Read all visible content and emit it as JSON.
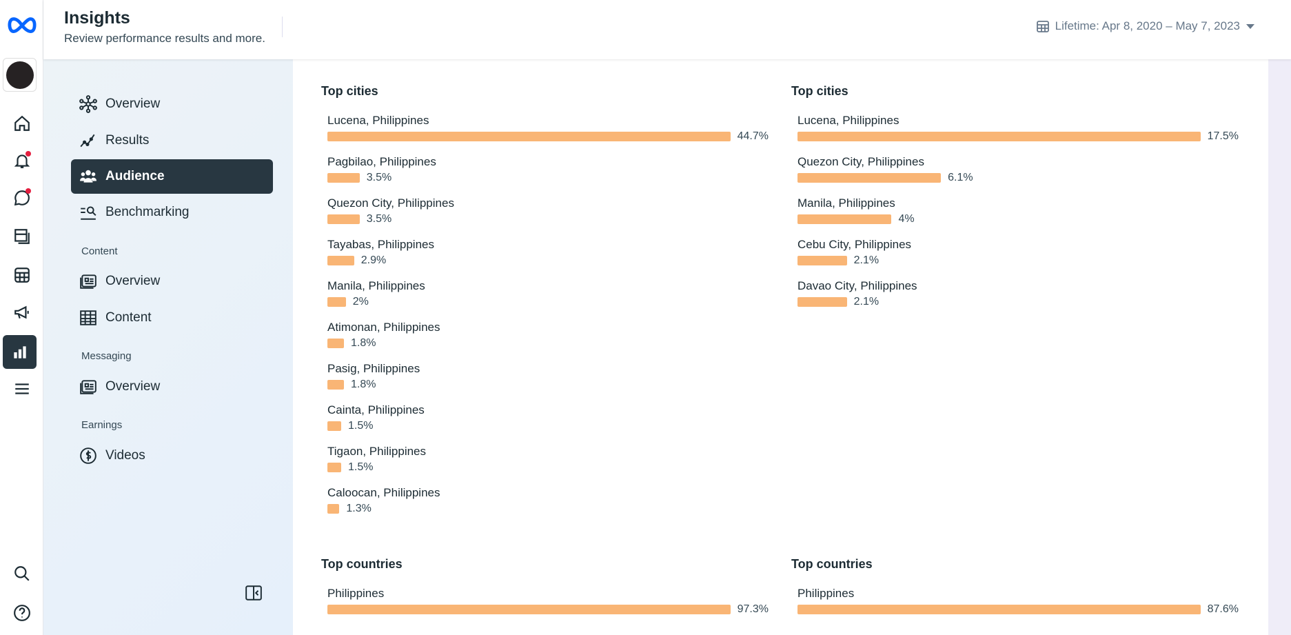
{
  "header": {
    "title": "Insights",
    "subtitle": "Review performance results and more.",
    "date_range": "Lifetime: Apr 8, 2020 – May 7, 2023"
  },
  "sidebar": {
    "items": [
      {
        "label": "Overview",
        "icon": "network-icon"
      },
      {
        "label": "Results",
        "icon": "trend-icon"
      },
      {
        "label": "Audience",
        "icon": "people-icon",
        "active": true
      },
      {
        "label": "Benchmarking",
        "icon": "benchmark-icon"
      }
    ],
    "content_heading": "Content",
    "content_items": [
      {
        "label": "Overview",
        "icon": "content-overview-icon"
      },
      {
        "label": "Content",
        "icon": "table-icon"
      }
    ],
    "messaging_heading": "Messaging",
    "messaging_items": [
      {
        "label": "Overview",
        "icon": "messaging-overview-icon"
      }
    ],
    "earnings_heading": "Earnings",
    "earnings_items": [
      {
        "label": "Videos",
        "icon": "dollar-icon"
      }
    ]
  },
  "main": {
    "sections": [
      {
        "title": "Top cities",
        "items": [
          [
            "Lucena, Philippines",
            44.7
          ],
          [
            "Pagbilao, Philippines",
            3.5
          ],
          [
            "Quezon City, Philippines",
            3.5
          ],
          [
            "Tayabas, Philippines",
            2.9
          ],
          [
            "Manila, Philippines",
            2
          ],
          [
            "Atimonan, Philippines",
            1.8
          ],
          [
            "Pasig, Philippines",
            1.8
          ],
          [
            "Cainta, Philippines",
            1.5
          ],
          [
            "Tigaon, Philippines",
            1.5
          ],
          [
            "Caloocan, Philippines",
            1.3
          ]
        ]
      },
      {
        "title": "Top cities",
        "items": [
          [
            "Lucena, Philippines",
            17.5
          ],
          [
            "Quezon City, Philippines",
            6.1
          ],
          [
            "Manila, Philippines",
            4
          ],
          [
            "Cebu City, Philippines",
            2.1
          ],
          [
            "Davao City, Philippines",
            2.1
          ]
        ]
      },
      {
        "title": "Top countries",
        "items": [
          [
            "Philippines",
            97.3
          ]
        ]
      },
      {
        "title": "Top countries",
        "items": [
          [
            "Philippines",
            87.6
          ]
        ]
      }
    ]
  },
  "colors": {
    "bar": "#f9b575",
    "active_nav": "#283741",
    "meta_blue": "#0866ff"
  }
}
